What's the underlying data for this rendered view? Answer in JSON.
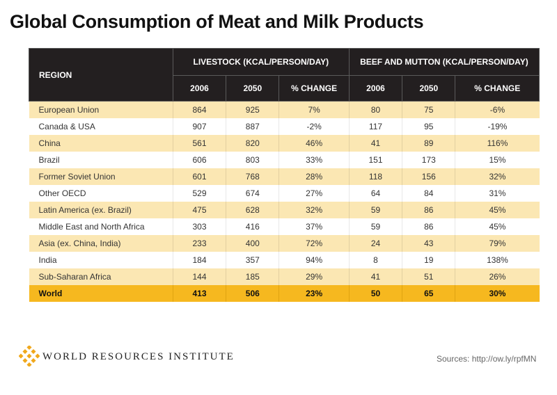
{
  "title": "Global Consumption of Meat and Milk Products",
  "table": {
    "region_header": "REGION",
    "groups": [
      "LIVESTOCK (KCAL/PERSON/DAY)",
      "BEEF AND MUTTON (KCAL/PERSON/DAY)"
    ],
    "subheaders": [
      "2006",
      "2050",
      "% CHANGE",
      "2006",
      "2050",
      "% CHANGE"
    ],
    "rows": [
      [
        "European Union",
        "864",
        "925",
        "7%",
        "80",
        "75",
        "-6%"
      ],
      [
        "Canada & USA",
        "907",
        "887",
        "-2%",
        "117",
        "95",
        "-19%"
      ],
      [
        "China",
        "561",
        "820",
        "46%",
        "41",
        "89",
        "116%"
      ],
      [
        "Brazil",
        "606",
        "803",
        "33%",
        "151",
        "173",
        "15%"
      ],
      [
        "Former Soviet Union",
        "601",
        "768",
        "28%",
        "118",
        "156",
        "32%"
      ],
      [
        "Other OECD",
        "529",
        "674",
        "27%",
        "64",
        "84",
        "31%"
      ],
      [
        "Latin America (ex. Brazil)",
        "475",
        "628",
        "32%",
        "59",
        "86",
        "45%"
      ],
      [
        "Middle East and North Africa",
        "303",
        "416",
        "37%",
        "59",
        "86",
        "45%"
      ],
      [
        "Asia (ex. China, India)",
        "233",
        "400",
        "72%",
        "24",
        "43",
        "79%"
      ],
      [
        "India",
        "184",
        "357",
        "94%",
        "8",
        "19",
        "138%"
      ],
      [
        "Sub-Saharan Africa",
        "144",
        "185",
        "29%",
        "41",
        "51",
        "26%"
      ]
    ],
    "total": [
      "World",
      "413",
      "506",
      "23%",
      "50",
      "65",
      "30%"
    ]
  },
  "footer": {
    "logo_icon": "wri-lattice-logo-icon",
    "org_name": "WORLD RESOURCES INSTITUTE",
    "sources": "Sources: http://ow.ly/rpfMN"
  },
  "colors": {
    "header_bg": "#231f20",
    "row_highlight": "#fbe7b3",
    "total_row": "#f6b81f",
    "logo_gold": "#f0a81c"
  }
}
